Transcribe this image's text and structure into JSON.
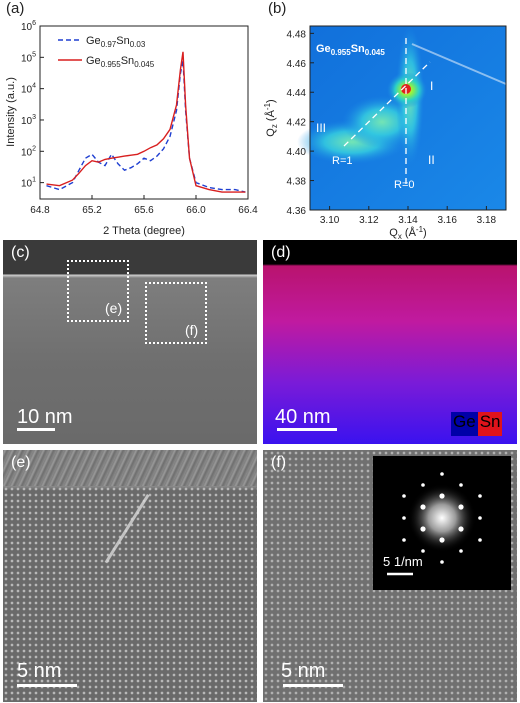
{
  "panel_a": {
    "label": "(a)",
    "xlabel": "2 Theta (degree)",
    "ylabel": "Intensity (a.u.)",
    "legend": [
      {
        "base": "Ge",
        "sub1": "0.97",
        "mid": "Sn",
        "sub2": "0.03"
      },
      {
        "base": "Ge",
        "sub1": "0.955",
        "mid": "Sn",
        "sub2": "0.045"
      }
    ],
    "xticks": [
      "64.8",
      "65.2",
      "65.6",
      "66.0",
      "66.4"
    ],
    "yticks": [
      {
        "base": "10",
        "exp": "1"
      },
      {
        "base": "10",
        "exp": "2"
      },
      {
        "base": "10",
        "exp": "3"
      },
      {
        "base": "10",
        "exp": "4"
      },
      {
        "base": "10",
        "exp": "5"
      },
      {
        "base": "10",
        "exp": "6"
      }
    ],
    "colors": {
      "dashed": "#1f3fd1",
      "solid": "#d81f1f"
    }
  },
  "panel_b": {
    "label": "(b)",
    "title": {
      "base": "Ge",
      "sub1": "0.955",
      "mid": "Sn",
      "sub2": "0.045"
    },
    "xlabel_base": "Q",
    "xlabel_sub": "x",
    "xlabel_unit": " (Å",
    "xlabel_exp": "-1",
    "xlabel_close": ")",
    "ylabel_base": "Q",
    "ylabel_sub": "z",
    "ylabel_unit": " (Å",
    "ylabel_exp": "-1",
    "ylabel_close": ")",
    "xticks": [
      "3.10",
      "3.12",
      "3.14",
      "3.16",
      "3.18"
    ],
    "yticks": [
      "4.48",
      "4.46",
      "4.44",
      "4.42",
      "4.40",
      "4.38",
      "4.36"
    ],
    "annotations": {
      "r1": "R=1",
      "r0": "R=0",
      "i": "I",
      "ii": "II",
      "iii": "III"
    }
  },
  "panel_c": {
    "label": "(c)",
    "box_e": "(e)",
    "box_f": "(f)",
    "scale": "10 nm"
  },
  "panel_d": {
    "label": "(d)",
    "scale": "40 nm",
    "legend_ge": "Ge",
    "legend_sn": "Sn",
    "colors": {
      "ge": "#1a0bd8",
      "sn": "#e0131b"
    }
  },
  "panel_e": {
    "label": "(e)",
    "scale": "5 nm"
  },
  "panel_f": {
    "label": "(f)",
    "scale": "5 nm",
    "inset_scale": "5 1/nm"
  },
  "chart_data": [
    {
      "type": "line",
      "panel": "a",
      "xlabel": "2 Theta (degree)",
      "ylabel": "Intensity (a.u.)",
      "xlim": [
        64.8,
        66.4
      ],
      "ylim": [
        3,
        1000000
      ],
      "yscale": "log",
      "series": [
        {
          "name": "Ge0.97Sn0.03",
          "style": "dashed",
          "x": [
            64.85,
            64.95,
            65.05,
            65.1,
            65.15,
            65.2,
            65.25,
            65.3,
            65.35,
            65.4,
            65.45,
            65.5,
            65.55,
            65.6,
            65.65,
            65.7,
            65.75,
            65.8,
            65.85,
            65.88,
            65.9,
            65.92,
            65.95,
            66.0,
            66.1,
            66.2,
            66.3,
            66.38
          ],
          "y": [
            8,
            6,
            10,
            25,
            60,
            80,
            45,
            35,
            80,
            40,
            25,
            30,
            40,
            60,
            50,
            70,
            120,
            300,
            2000,
            30000,
            80000,
            2000,
            60,
            10,
            7,
            6,
            6,
            5
          ]
        },
        {
          "name": "Ge0.955Sn0.045",
          "style": "solid",
          "x": [
            64.85,
            64.95,
            65.05,
            65.1,
            65.15,
            65.2,
            65.25,
            65.3,
            65.35,
            65.4,
            65.45,
            65.5,
            65.55,
            65.6,
            65.65,
            65.7,
            65.75,
            65.8,
            65.85,
            65.88,
            65.9,
            65.92,
            65.95,
            66.0,
            66.1,
            66.2,
            66.3,
            66.38
          ],
          "y": [
            9,
            8,
            12,
            20,
            35,
            50,
            45,
            55,
            60,
            65,
            70,
            75,
            80,
            100,
            130,
            160,
            250,
            500,
            3000,
            40000,
            150000,
            3000,
            60,
            8,
            6,
            5,
            5,
            5
          ]
        }
      ]
    }
  ]
}
